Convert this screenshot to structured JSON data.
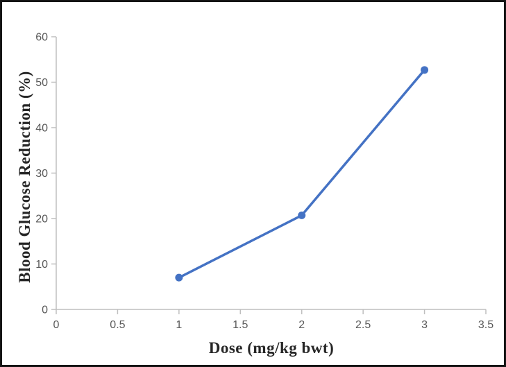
{
  "chart_data": {
    "type": "line",
    "title": "",
    "xlabel": "Dose (mg/kg bwt)",
    "ylabel": "Blood Glucose Reduction (%)",
    "x": [
      1,
      2,
      3
    ],
    "values": [
      7,
      20.7,
      52.7
    ],
    "xlim": [
      0,
      3.5
    ],
    "ylim": [
      0,
      60
    ],
    "xticks": [
      0,
      0.5,
      1,
      1.5,
      2,
      2.5,
      3,
      3.5
    ],
    "yticks": [
      0,
      10,
      20,
      30,
      40,
      50,
      60
    ],
    "grid": false,
    "legend": false,
    "legend_position": "none",
    "marker": "circle",
    "line_color": "#4472C4",
    "axis_color": "#BFBFBF",
    "tick_label_color": "#595959",
    "title_color": "#262626",
    "frame_color": "#141414"
  }
}
